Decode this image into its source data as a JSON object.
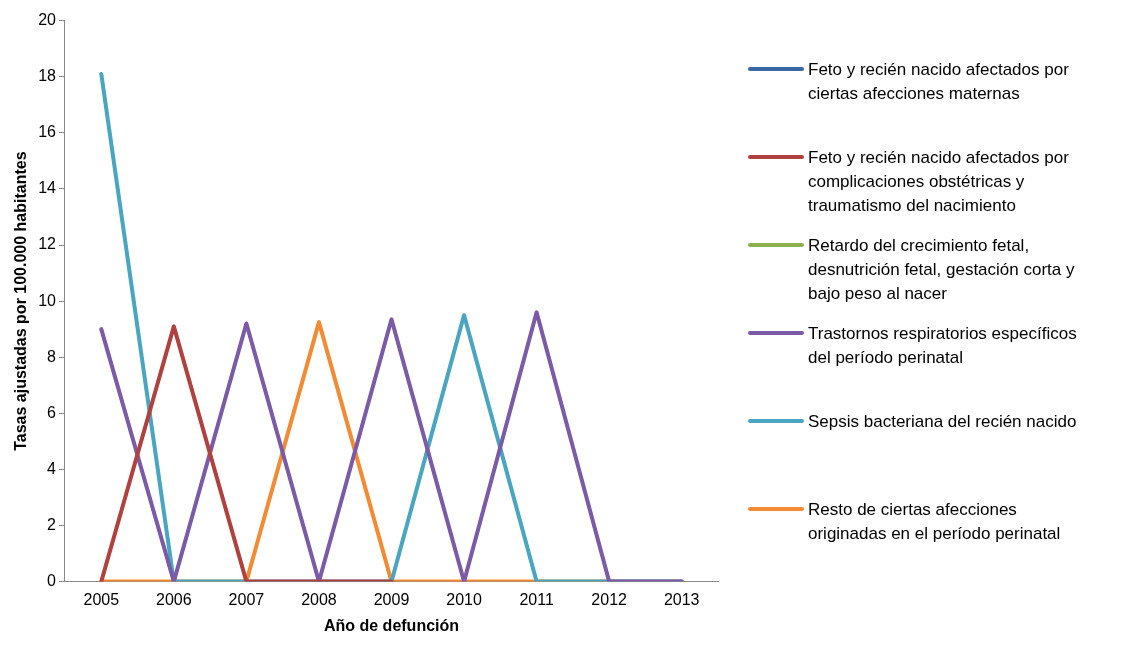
{
  "chart_data": {
    "type": "line",
    "xlabel": "Año de defunción",
    "ylabel": "Tasas ajustadas por 100.000 habitantes",
    "categories": [
      "2005",
      "2006",
      "2007",
      "2008",
      "2009",
      "2010",
      "2011",
      "2012",
      "2013"
    ],
    "ylim": [
      0,
      20
    ],
    "yticks": [
      0,
      2,
      4,
      6,
      8,
      10,
      12,
      14,
      16,
      18,
      20
    ],
    "grid": false,
    "legend": "right",
    "marker": "none",
    "line_style": "solid",
    "series": [
      {
        "name": "Feto y recién nacido afectados por ciertas afecciones maternas",
        "color": "#3c67a5",
        "values": [
          null,
          null,
          null,
          null,
          null,
          null,
          null,
          null,
          null
        ]
      },
      {
        "name": "Feto y recién nacido afectados por complicaciones obstétricas y traumatismo del nacimiento",
        "color": "#b0413e",
        "values": [
          0,
          9.1,
          0,
          0,
          0,
          null,
          null,
          null,
          null
        ]
      },
      {
        "name": "Retardo del crecimiento fetal, desnutrición fetal, gestación corta y bajo peso al nacer",
        "color": "#8db04a",
        "values": [
          null,
          null,
          null,
          null,
          null,
          null,
          null,
          null,
          null
        ]
      },
      {
        "name": "Trastornos respiratorios específicos del período perinatal",
        "color": "#7b5aa6",
        "values": [
          9.0,
          0,
          9.2,
          0,
          9.35,
          0,
          9.6,
          0,
          0
        ]
      },
      {
        "name": "Sepsis bacteriana del recién nacido",
        "color": "#4aa5c0",
        "values": [
          18.1,
          0,
          0,
          0,
          0,
          9.5,
          0,
          0,
          0
        ]
      },
      {
        "name": "Resto de ciertas afecciones originadas en el período perinatal",
        "color": "#f38b35",
        "values": [
          0,
          0,
          0,
          9.25,
          0,
          0,
          0,
          0,
          0
        ]
      }
    ]
  }
}
